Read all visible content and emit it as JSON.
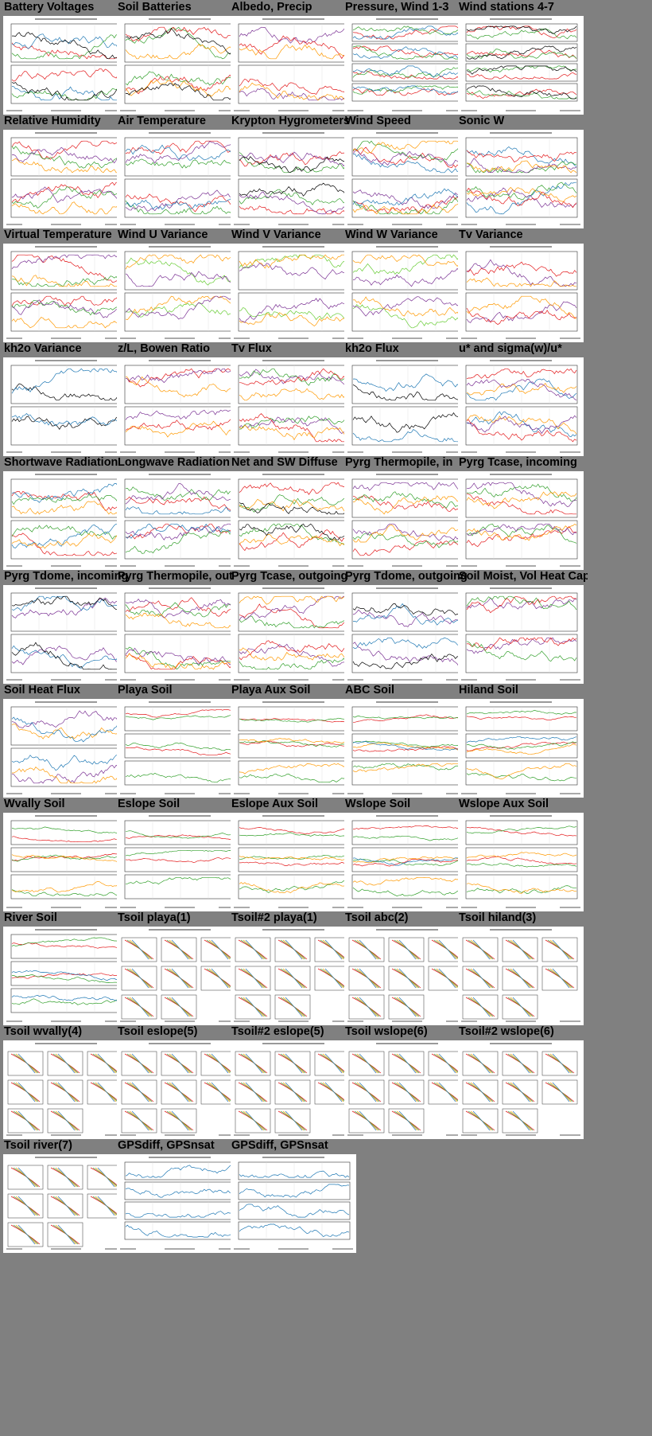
{
  "page": {
    "background": "#808080"
  },
  "rows": [
    [
      {
        "title": "Battery Voltages",
        "kind": "twoPanel",
        "colors": [
          "#e31a1c",
          "#1f78b4",
          "#33a02c",
          "#000000"
        ]
      },
      {
        "title": "Soil Batteries",
        "kind": "twoPanel",
        "colors": [
          "#33a02c",
          "#e31a1c",
          "#ff9900",
          "#000000"
        ]
      },
      {
        "title": "Albedo, Precip",
        "kind": "twoPanel",
        "colors": [
          "#7b3294",
          "#e31a1c",
          "#ff9900"
        ]
      },
      {
        "title": "Pressure, Wind 1-3",
        "kind": "fourPanel",
        "colors": [
          "#e31a1c",
          "#33a02c",
          "#1f78b4"
        ]
      },
      {
        "title": "Wind stations 4-7",
        "kind": "fourPanel",
        "colors": [
          "#e31a1c",
          "#33a02c",
          "#000000"
        ]
      }
    ],
    [
      {
        "title": "Relative Humidity",
        "kind": "twoPanel",
        "colors": [
          "#e31a1c",
          "#33a02c",
          "#7b3294",
          "#ff9900"
        ]
      },
      {
        "title": "Air Temperature",
        "kind": "twoPanel",
        "colors": [
          "#e31a1c",
          "#33a02c",
          "#7b3294",
          "#1f78b4"
        ]
      },
      {
        "title": "Krypton Hygrometers",
        "kind": "twoPanel",
        "colors": [
          "#e31a1c",
          "#33a02c",
          "#7b3294",
          "#000000"
        ]
      },
      {
        "title": "Wind Speed",
        "kind": "twoPanel",
        "colors": [
          "#e31a1c",
          "#33a02c",
          "#7b3294",
          "#ff9900",
          "#1f78b4"
        ]
      },
      {
        "title": "Sonic W",
        "kind": "twoPanel",
        "colors": [
          "#1f78b4",
          "#33a02c",
          "#7b3294",
          "#e31a1c",
          "#ff9900"
        ]
      }
    ],
    [
      {
        "title": "Virtual Temperature",
        "kind": "twoPanel",
        "colors": [
          "#e31a1c",
          "#33a02c",
          "#7b3294",
          "#ff9900"
        ]
      },
      {
        "title": "Wind U Variance",
        "kind": "twoPanel",
        "colors": [
          "#66cc33",
          "#ff9900",
          "#7b3294"
        ]
      },
      {
        "title": "Wind V Variance",
        "kind": "twoPanel",
        "colors": [
          "#66cc33",
          "#ff9900",
          "#7b3294"
        ]
      },
      {
        "title": "Wind W Variance",
        "kind": "twoPanel",
        "colors": [
          "#66cc33",
          "#ff9900",
          "#7b3294"
        ]
      },
      {
        "title": "Tv Variance",
        "kind": "twoPanel",
        "colors": [
          "#7b3294",
          "#e31a1c",
          "#ff9900"
        ]
      }
    ],
    [
      {
        "title": "kh2o Variance",
        "kind": "twoPanel",
        "colors": [
          "#000000",
          "#1f78b4"
        ]
      },
      {
        "title": "z/L, Bowen Ratio",
        "kind": "twoPanel",
        "colors": [
          "#e31a1c",
          "#ff9900",
          "#7b3294"
        ]
      },
      {
        "title": "Tv Flux",
        "kind": "twoPanel",
        "colors": [
          "#7b3294",
          "#33a02c",
          "#e31a1c",
          "#ff9900"
        ]
      },
      {
        "title": "kh2o Flux",
        "kind": "twoPanel",
        "colors": [
          "#000000",
          "#1f78b4"
        ]
      },
      {
        "title": "u* and sigma(w)/u*",
        "kind": "twoPanel",
        "colors": [
          "#1f78b4",
          "#ff9900",
          "#e31a1c",
          "#7b3294"
        ]
      }
    ],
    [
      {
        "title": "Shortwave Radiation",
        "kind": "twoPanel",
        "colors": [
          "#e31a1c",
          "#33a02c",
          "#1f78b4",
          "#ff9900"
        ]
      },
      {
        "title": "Longwave Radiation",
        "kind": "twoPanel",
        "colors": [
          "#e31a1c",
          "#33a02c",
          "#7b3294",
          "#1f78b4"
        ]
      },
      {
        "title": "Net and SW Diffuse",
        "kind": "twoPanel",
        "colors": [
          "#e31a1c",
          "#33a02c",
          "#ff9900",
          "#000000"
        ]
      },
      {
        "title": "Pyrg Thermopile, in",
        "kind": "twoPanel",
        "colors": [
          "#e31a1c",
          "#33a02c",
          "#7b3294",
          "#ff9900"
        ]
      },
      {
        "title": "Pyrg Tcase, incoming",
        "kind": "twoPanel",
        "colors": [
          "#e31a1c",
          "#33a02c",
          "#7b3294",
          "#ff9900"
        ]
      }
    ],
    [
      {
        "title": "Pyrg Tdome, incoming",
        "kind": "twoPanel",
        "colors": [
          "#7b3294",
          "#1f78b4",
          "#000000"
        ]
      },
      {
        "title": "Pyrg Thermopile, out",
        "kind": "twoPanel",
        "colors": [
          "#e31a1c",
          "#33a02c",
          "#7b3294",
          "#ff9900"
        ]
      },
      {
        "title": "Pyrg Tcase, outgoing",
        "kind": "twoPanel",
        "colors": [
          "#e31a1c",
          "#33a02c",
          "#7b3294",
          "#ff9900"
        ]
      },
      {
        "title": "Pyrg Tdome, outgoing",
        "kind": "twoPanel",
        "colors": [
          "#7b3294",
          "#1f78b4",
          "#000000"
        ]
      },
      {
        "title": "Soil Moist, Vol Heat Cap",
        "kind": "twoPanel",
        "colors": [
          "#7b3294",
          "#e31a1c",
          "#33a02c"
        ]
      }
    ],
    [
      {
        "title": "Soil Heat Flux",
        "kind": "twoPanel",
        "colors": [
          "#7b3294",
          "#ff9900",
          "#1f78b4"
        ]
      },
      {
        "title": "Playa Soil",
        "kind": "threePanel",
        "colors": [
          "#e31a1c",
          "#33a02c"
        ]
      },
      {
        "title": "Playa Aux Soil",
        "kind": "threePanel",
        "colors": [
          "#e31a1c",
          "#33a02c",
          "#ff9900"
        ]
      },
      {
        "title": "ABC Soil",
        "kind": "threePanel",
        "colors": [
          "#e31a1c",
          "#33a02c",
          "#ff9900",
          "#1f78b4"
        ]
      },
      {
        "title": "Hiland Soil",
        "kind": "threePanel",
        "colors": [
          "#e31a1c",
          "#33a02c",
          "#ff9900",
          "#1f78b4"
        ]
      }
    ],
    [
      {
        "title": "Wvally Soil",
        "kind": "threePanel",
        "colors": [
          "#e31a1c",
          "#33a02c",
          "#ff9900"
        ]
      },
      {
        "title": "Eslope Soil",
        "kind": "threePanel",
        "colors": [
          "#e31a1c",
          "#33a02c"
        ]
      },
      {
        "title": "Eslope Aux Soil",
        "kind": "threePanel",
        "colors": [
          "#e31a1c",
          "#33a02c",
          "#ff9900"
        ]
      },
      {
        "title": "Wslope Soil",
        "kind": "threePanel",
        "colors": [
          "#e31a1c",
          "#33a02c",
          "#ff9900",
          "#1f78b4"
        ]
      },
      {
        "title": "Wslope Aux Soil",
        "kind": "threePanel",
        "colors": [
          "#e31a1c",
          "#33a02c",
          "#ff9900"
        ]
      }
    ],
    [
      {
        "title": "River Soil",
        "kind": "threePanel",
        "colors": [
          "#e31a1c",
          "#33a02c",
          "#1f78b4"
        ]
      },
      {
        "title": "Tsoil playa(1)",
        "kind": "profile",
        "colors": [
          "#e31a1c",
          "#33a02c",
          "#ff9900",
          "#1f78b4"
        ]
      },
      {
        "title": "Tsoil#2 playa(1)",
        "kind": "profile",
        "colors": [
          "#e31a1c",
          "#33a02c",
          "#ff9900",
          "#1f78b4"
        ]
      },
      {
        "title": "Tsoil abc(2)",
        "kind": "profile",
        "colors": [
          "#e31a1c",
          "#33a02c",
          "#ff9900",
          "#1f78b4"
        ]
      },
      {
        "title": "Tsoil hiland(3)",
        "kind": "profile",
        "colors": [
          "#e31a1c",
          "#33a02c",
          "#ff9900",
          "#1f78b4"
        ]
      }
    ],
    [
      {
        "title": "Tsoil wvally(4)",
        "kind": "profile",
        "colors": [
          "#e31a1c",
          "#33a02c",
          "#ff9900",
          "#1f78b4"
        ]
      },
      {
        "title": "Tsoil eslope(5)",
        "kind": "profile",
        "colors": [
          "#e31a1c",
          "#33a02c",
          "#ff9900",
          "#1f78b4"
        ]
      },
      {
        "title": "Tsoil#2 eslope(5)",
        "kind": "profile",
        "colors": [
          "#e31a1c",
          "#33a02c",
          "#ff9900",
          "#1f78b4"
        ]
      },
      {
        "title": "Tsoil wslope(6)",
        "kind": "profile",
        "colors": [
          "#e31a1c",
          "#33a02c",
          "#ff9900",
          "#1f78b4"
        ]
      },
      {
        "title": "Tsoil#2 wslope(6)",
        "kind": "profile",
        "colors": [
          "#e31a1c",
          "#33a02c",
          "#ff9900",
          "#1f78b4"
        ]
      }
    ],
    [
      {
        "title": "Tsoil river(7)",
        "kind": "profile",
        "colors": [
          "#e31a1c",
          "#33a02c",
          "#ff9900",
          "#1f78b4"
        ]
      },
      {
        "title": "GPSdiff, GPSnsat",
        "kind": "fourPanel",
        "colors": [
          "#1f78b4"
        ]
      },
      {
        "title": "GPSdiff, GPSnsat",
        "kind": "fourPanel",
        "colors": [
          "#1f78b4"
        ]
      }
    ]
  ]
}
